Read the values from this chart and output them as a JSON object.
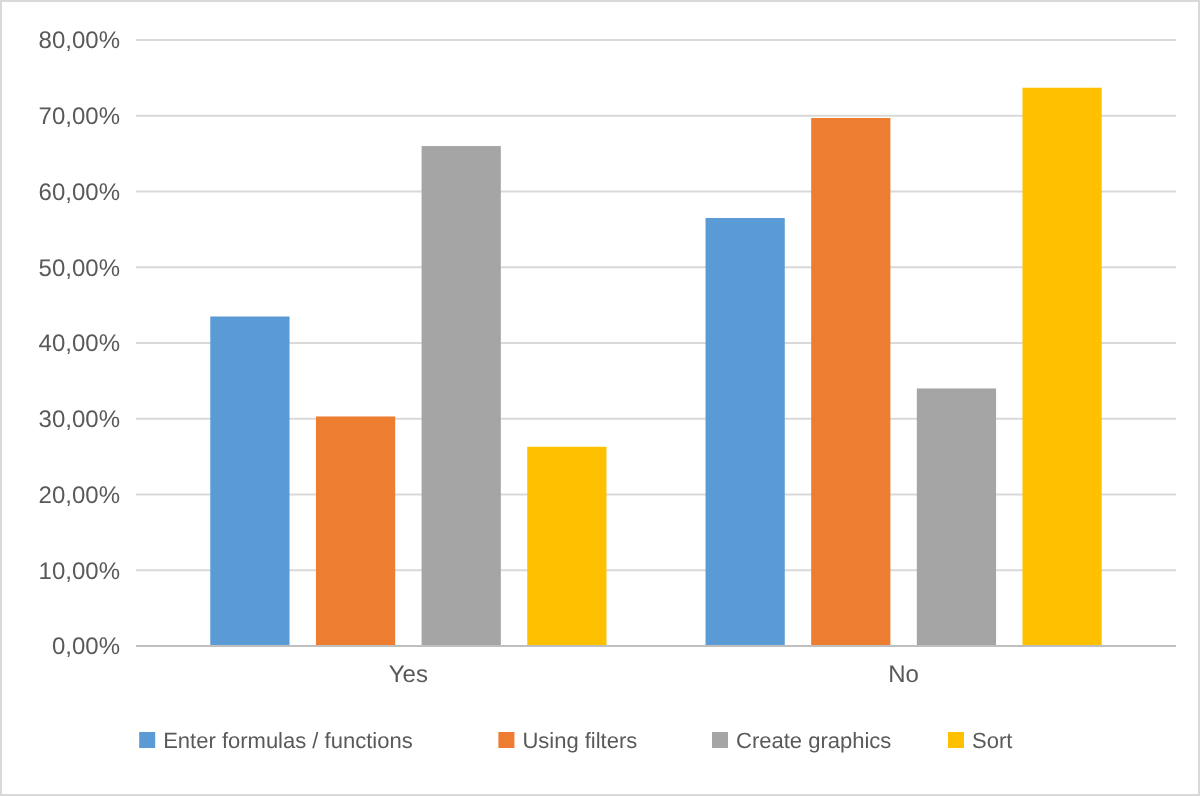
{
  "chart_data": {
    "type": "bar",
    "categories": [
      "Yes",
      "No"
    ],
    "series": [
      {
        "name": "Enter formulas / functions",
        "color": "#5b9bd5",
        "values": [
          43.5,
          56.5
        ]
      },
      {
        "name": "Using filters",
        "color": "#ed7d31",
        "values": [
          30.3,
          69.7
        ]
      },
      {
        "name": "Create graphics",
        "color": "#a5a5a5",
        "values": [
          66,
          34
        ]
      },
      {
        "name": "Sort",
        "color": "#ffc000",
        "values": [
          26.3,
          73.7
        ]
      }
    ],
    "ylim": [
      0,
      80
    ],
    "yticks": [
      {
        "value": 0,
        "label": "0,00%"
      },
      {
        "value": 10,
        "label": "10,00%"
      },
      {
        "value": 20,
        "label": "20,00%"
      },
      {
        "value": 30,
        "label": "30,00%"
      },
      {
        "value": 40,
        "label": "40,00%"
      },
      {
        "value": 50,
        "label": "50,00%"
      },
      {
        "value": 60,
        "label": "60,00%"
      },
      {
        "value": 70,
        "label": "70,00%"
      },
      {
        "value": 80,
        "label": "80,00%"
      }
    ],
    "grid": "y",
    "legend": "bottom"
  }
}
